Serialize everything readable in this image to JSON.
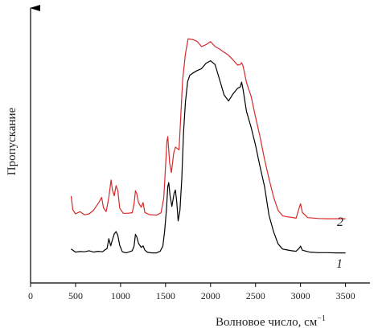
{
  "chart_data": {
    "type": "line",
    "xlabel": "Волновое число, см",
    "xlabel_superscript": "−1",
    "ylabel": "Пропускание",
    "xlim": [
      0,
      3700
    ],
    "ylim": [
      0,
      100
    ],
    "x_ticks": [
      0,
      500,
      1000,
      1500,
      2000,
      2500,
      3000,
      3500
    ],
    "grid": false,
    "y_tick_labels": false,
    "series": [
      {
        "name": "1",
        "color": "#000000",
        "points": [
          [
            450,
            12.4
          ],
          [
            500,
            11.3
          ],
          [
            550,
            11.5
          ],
          [
            600,
            11.4
          ],
          [
            650,
            11.8
          ],
          [
            700,
            11.3
          ],
          [
            750,
            11.6
          ],
          [
            800,
            11.4
          ],
          [
            830,
            12.2
          ],
          [
            850,
            12.6
          ],
          [
            870,
            16.2
          ],
          [
            890,
            13.6
          ],
          [
            910,
            15.8
          ],
          [
            930,
            18.0
          ],
          [
            950,
            18.8
          ],
          [
            970,
            17.4
          ],
          [
            990,
            13.8
          ],
          [
            1020,
            11.4
          ],
          [
            1060,
            11.0
          ],
          [
            1100,
            11.4
          ],
          [
            1130,
            11.8
          ],
          [
            1150,
            13.5
          ],
          [
            1165,
            17.8
          ],
          [
            1180,
            16.9
          ],
          [
            1200,
            14.4
          ],
          [
            1230,
            13.0
          ],
          [
            1250,
            13.6
          ],
          [
            1270,
            12.0
          ],
          [
            1300,
            11.2
          ],
          [
            1350,
            11.0
          ],
          [
            1400,
            11.0
          ],
          [
            1440,
            11.6
          ],
          [
            1470,
            13.5
          ],
          [
            1490,
            19.0
          ],
          [
            1510,
            27.0
          ],
          [
            1525,
            35.3
          ],
          [
            1535,
            36.7
          ],
          [
            1550,
            32.0
          ],
          [
            1570,
            28.0
          ],
          [
            1595,
            32.8
          ],
          [
            1610,
            34.0
          ],
          [
            1625,
            29.5
          ],
          [
            1640,
            22.7
          ],
          [
            1660,
            26.5
          ],
          [
            1680,
            38.0
          ],
          [
            1700,
            55.0
          ],
          [
            1720,
            66.0
          ],
          [
            1745,
            73.7
          ],
          [
            1770,
            76.0
          ],
          [
            1800,
            76.7
          ],
          [
            1850,
            77.7
          ],
          [
            1900,
            78.4
          ],
          [
            1950,
            80.4
          ],
          [
            2000,
            81.3
          ],
          [
            2050,
            79.9
          ],
          [
            2100,
            74.4
          ],
          [
            2150,
            68.8
          ],
          [
            2200,
            66.6
          ],
          [
            2250,
            69.2
          ],
          [
            2300,
            71.2
          ],
          [
            2330,
            71.7
          ],
          [
            2345,
            73.5
          ],
          [
            2360,
            71.0
          ],
          [
            2400,
            62.7
          ],
          [
            2450,
            57.1
          ],
          [
            2500,
            50.4
          ],
          [
            2550,
            42.6
          ],
          [
            2600,
            35.3
          ],
          [
            2650,
            24.7
          ],
          [
            2700,
            18.8
          ],
          [
            2750,
            14.3
          ],
          [
            2800,
            12.4
          ],
          [
            2850,
            12.1
          ],
          [
            2900,
            11.8
          ],
          [
            2950,
            11.6
          ],
          [
            2985,
            12.7
          ],
          [
            3000,
            13.5
          ],
          [
            3020,
            12.0
          ],
          [
            3100,
            11.3
          ],
          [
            3200,
            11.1
          ],
          [
            3300,
            11.1
          ],
          [
            3400,
            11.0
          ],
          [
            3500,
            11.0
          ]
        ]
      },
      {
        "name": "2",
        "color": "#d62a2a",
        "points": [
          [
            450,
            31.8
          ],
          [
            470,
            26.7
          ],
          [
            500,
            25.3
          ],
          [
            550,
            26.1
          ],
          [
            600,
            24.9
          ],
          [
            650,
            25.3
          ],
          [
            700,
            26.6
          ],
          [
            760,
            29.5
          ],
          [
            790,
            31.3
          ],
          [
            810,
            27.5
          ],
          [
            840,
            26.1
          ],
          [
            870,
            31.3
          ],
          [
            895,
            37.7
          ],
          [
            910,
            33.9
          ],
          [
            930,
            31.9
          ],
          [
            950,
            35.6
          ],
          [
            970,
            33.8
          ],
          [
            990,
            27.4
          ],
          [
            1030,
            25.5
          ],
          [
            1080,
            25.5
          ],
          [
            1130,
            25.7
          ],
          [
            1150,
            29.0
          ],
          [
            1165,
            33.7
          ],
          [
            1180,
            32.7
          ],
          [
            1200,
            29.3
          ],
          [
            1230,
            27.7
          ],
          [
            1250,
            29.4
          ],
          [
            1270,
            25.8
          ],
          [
            1320,
            25.0
          ],
          [
            1400,
            24.8
          ],
          [
            1450,
            25.7
          ],
          [
            1480,
            31.0
          ],
          [
            1500,
            42.6
          ],
          [
            1515,
            51.8
          ],
          [
            1525,
            53.6
          ],
          [
            1545,
            43.9
          ],
          [
            1565,
            40.4
          ],
          [
            1590,
            47.4
          ],
          [
            1610,
            49.7
          ],
          [
            1630,
            49.2
          ],
          [
            1650,
            48.7
          ],
          [
            1670,
            61.8
          ],
          [
            1690,
            74.4
          ],
          [
            1720,
            83.7
          ],
          [
            1750,
            89.3
          ],
          [
            1800,
            89.1
          ],
          [
            1850,
            88.4
          ],
          [
            1900,
            86.5
          ],
          [
            1950,
            87.2
          ],
          [
            2000,
            88.3
          ],
          [
            2050,
            86.5
          ],
          [
            2100,
            85.6
          ],
          [
            2150,
            84.4
          ],
          [
            2200,
            83.3
          ],
          [
            2250,
            81.6
          ],
          [
            2300,
            79.7
          ],
          [
            2330,
            79.9
          ],
          [
            2345,
            80.6
          ],
          [
            2360,
            79.5
          ],
          [
            2400,
            73.3
          ],
          [
            2450,
            68.4
          ],
          [
            2500,
            60.7
          ],
          [
            2550,
            53.5
          ],
          [
            2600,
            45.2
          ],
          [
            2650,
            38.1
          ],
          [
            2700,
            31.5
          ],
          [
            2750,
            26.6
          ],
          [
            2800,
            24.6
          ],
          [
            2850,
            24.2
          ],
          [
            2900,
            24.0
          ],
          [
            2950,
            23.7
          ],
          [
            2985,
            27.5
          ],
          [
            3000,
            29.0
          ],
          [
            3020,
            25.8
          ],
          [
            3080,
            23.9
          ],
          [
            3200,
            23.6
          ],
          [
            3300,
            23.5
          ],
          [
            3400,
            23.5
          ],
          [
            3500,
            23.5
          ]
        ]
      }
    ]
  }
}
